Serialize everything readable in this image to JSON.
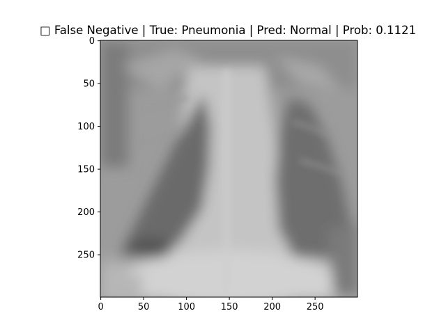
{
  "figure": {
    "title": "□ False Negative | True: Pneumonia | Pred: Normal | Prob: 0.1121",
    "image_kind": "grayscale chest x-ray (blurred)",
    "colormap": "gray",
    "grid": false,
    "x_axis": {
      "range": [
        0,
        299
      ],
      "ticks": [
        0,
        50,
        100,
        150,
        200,
        250
      ]
    },
    "y_axis": {
      "range": [
        0,
        299
      ],
      "inverted": true,
      "ticks": [
        0,
        50,
        100,
        150,
        200,
        250
      ]
    },
    "colors": {
      "frame": "#000000",
      "background": "#ffffff"
    }
  }
}
